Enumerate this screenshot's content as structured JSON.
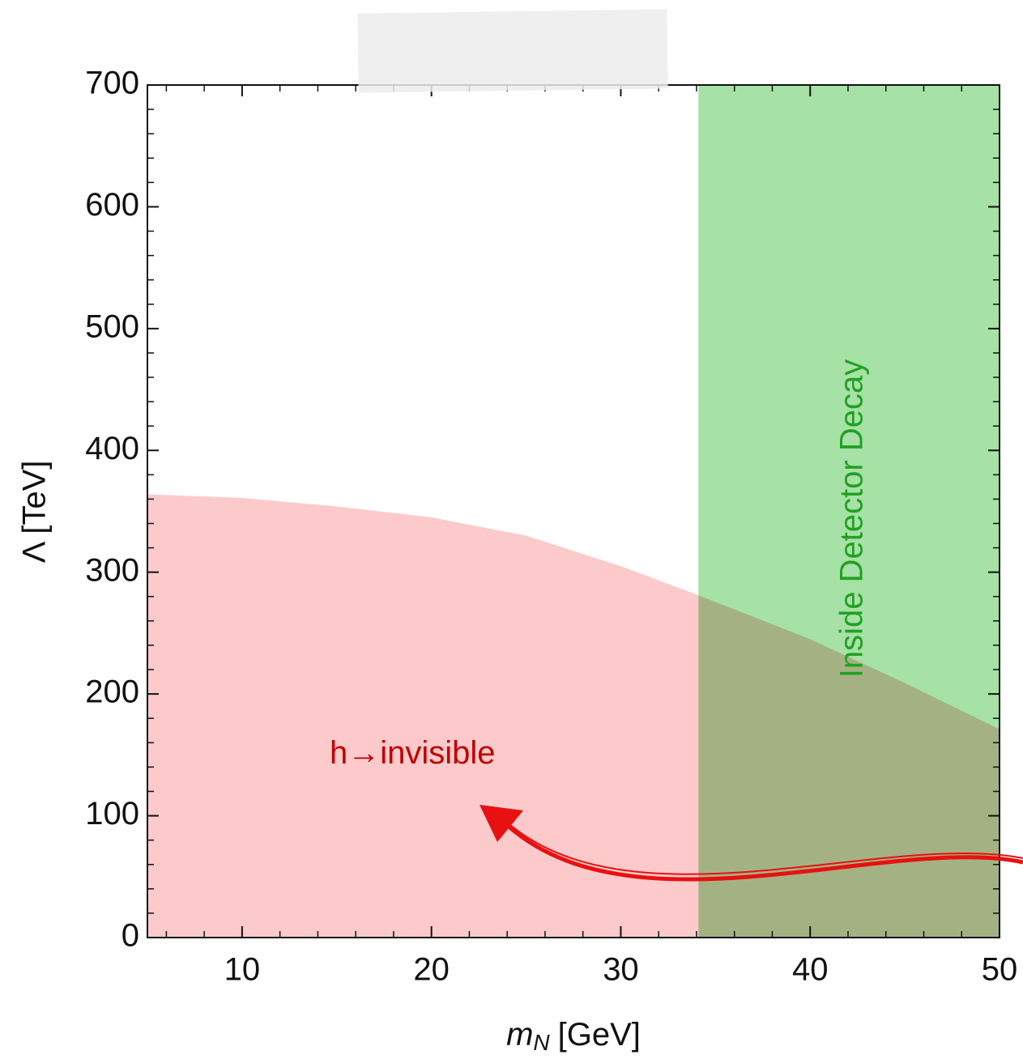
{
  "chart_data": {
    "type": "region",
    "x_label": {
      "symbol": "m",
      "subscript": "N",
      "unit": "[GeV]"
    },
    "y_label": "Λ [TeV]",
    "xlim": [
      5,
      50
    ],
    "ylim": [
      0,
      700
    ],
    "xticks": [
      10,
      20,
      30,
      40,
      50
    ],
    "yticks": [
      0,
      100,
      200,
      300,
      400,
      500,
      600,
      700
    ],
    "minor_xticks": [
      6,
      8,
      12,
      14,
      16,
      18,
      22,
      24,
      26,
      28,
      32,
      34,
      36,
      38,
      42,
      44,
      46,
      48
    ],
    "minor_yticks": [
      20,
      40,
      60,
      80,
      120,
      140,
      160,
      180,
      220,
      240,
      260,
      280,
      320,
      340,
      360,
      380,
      420,
      440,
      460,
      480,
      520,
      540,
      560,
      580,
      620,
      640,
      660,
      680
    ],
    "regions": [
      {
        "name": "h→invisible",
        "color": "#fccaca",
        "label_color": "#c00000",
        "x": [
          5,
          10,
          15,
          20,
          25,
          30,
          34.1,
          40,
          45,
          50
        ],
        "upper": [
          364,
          361,
          354,
          345,
          330,
          305,
          281,
          245,
          209,
          171
        ]
      },
      {
        "name": "Inside Detector Decay",
        "color": "#a6e1a6",
        "label_color": "#22a022",
        "x_range": [
          34.1,
          50
        ]
      }
    ]
  }
}
